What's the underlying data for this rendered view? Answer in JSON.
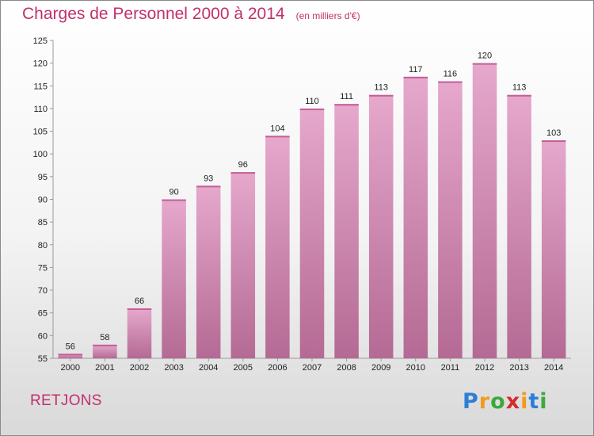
{
  "chart_data": {
    "type": "bar",
    "title": "Charges de Personnel 2000 à 2014",
    "subtitle": "(en milliers d'€)",
    "categories": [
      "2000",
      "2001",
      "2002",
      "2003",
      "2004",
      "2005",
      "2006",
      "2007",
      "2008",
      "2009",
      "2010",
      "2011",
      "2012",
      "2013",
      "2014"
    ],
    "values": [
      56,
      58,
      66,
      90,
      93,
      96,
      104,
      110,
      111,
      113,
      117,
      116,
      120,
      113,
      103
    ],
    "ylim": [
      55,
      125
    ],
    "yticks": [
      55,
      60,
      65,
      70,
      75,
      80,
      85,
      90,
      95,
      100,
      105,
      110,
      115,
      120,
      125
    ],
    "grid": false,
    "bar_color": "#d88fb8"
  },
  "commune": "RETJONS",
  "logo": {
    "letters": [
      "P",
      "r",
      "o",
      "x",
      "i",
      "t",
      "i"
    ],
    "colors": [
      "#2b7fd6",
      "#f39a1e",
      "#3ba93b",
      "#d62b2b",
      "#f39a1e",
      "#2b7fd6",
      "#3ba93b"
    ]
  }
}
